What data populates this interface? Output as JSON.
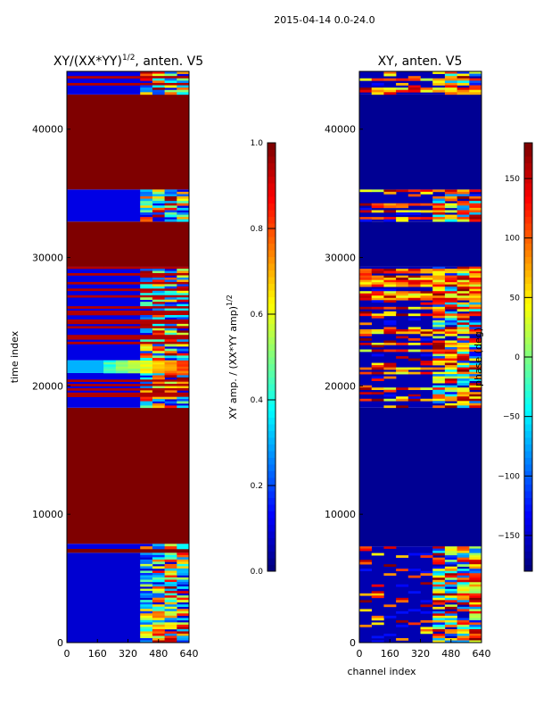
{
  "figure": {
    "suptitle": "2015-04-14 0.0-24.0"
  },
  "colors": {
    "jet": [
      "#00007f",
      "#0000ff",
      "#007fff",
      "#00ffff",
      "#7fff7f",
      "#ffff00",
      "#ff7f00",
      "#ff0000",
      "#7f0000"
    ]
  },
  "chart_data": [
    {
      "type": "heatmap",
      "title_main": "XY/(XX*YY)",
      "title_exp": "1/2",
      "title_tail": ", anten. V5",
      "xlabel": "",
      "ylabel": "time index",
      "xlim": [
        0,
        640
      ],
      "ylim": [
        0,
        44500
      ],
      "xticks": [
        0,
        160,
        320,
        480,
        640
      ],
      "yticks": [
        0,
        10000,
        20000,
        30000,
        40000
      ],
      "colorbar": {
        "label_main": "XY amp. / (XX*YY amp)",
        "label_exp": "1/2",
        "range": [
          0.0,
          1.0
        ],
        "ticks": [
          0.0,
          0.2,
          0.4,
          0.6,
          0.8,
          1.0
        ],
        "tick_labels": [
          "0.0",
          "0.2",
          "0.4",
          "0.6",
          "0.8",
          "1.0"
        ]
      },
      "bands": [
        {
          "t0": 0,
          "t1": 7000,
          "pattern": "noise",
          "base": 0.08
        },
        {
          "t0": 7000,
          "t1": 7300,
          "pattern": "solid",
          "value": 1.0
        },
        {
          "t0": 7300,
          "t1": 7700,
          "pattern": "noise",
          "base": 0.1
        },
        {
          "t0": 7700,
          "t1": 18300,
          "pattern": "solid",
          "value": 1.0
        },
        {
          "t0": 18300,
          "t1": 21000,
          "pattern": "stripes",
          "base": 0.1
        },
        {
          "t0": 21000,
          "t1": 22000,
          "pattern": "gradient",
          "base": 0.3
        },
        {
          "t0": 22000,
          "t1": 23800,
          "pattern": "stripes",
          "base": 0.1
        },
        {
          "t0": 23800,
          "t1": 29300,
          "pattern": "stripes",
          "base": 0.1
        },
        {
          "t0": 29300,
          "t1": 32800,
          "pattern": "solid",
          "value": 1.0
        },
        {
          "t0": 32800,
          "t1": 35300,
          "pattern": "noise",
          "base": 0.1
        },
        {
          "t0": 35300,
          "t1": 42700,
          "pattern": "solid",
          "value": 1.0
        },
        {
          "t0": 42700,
          "t1": 44500,
          "pattern": "stripes",
          "base": 0.1
        }
      ]
    },
    {
      "type": "heatmap",
      "title_main": "XY, anten. V5",
      "title_exp": "",
      "title_tail": "",
      "xlabel": "channel index",
      "ylabel": "",
      "xlim": [
        0,
        640
      ],
      "ylim": [
        0,
        44500
      ],
      "xticks": [
        0,
        160,
        320,
        480,
        640
      ],
      "yticks": [
        0,
        10000,
        20000,
        30000,
        40000
      ],
      "colorbar": {
        "label_main": "phase (deg)",
        "label_exp": "",
        "range": [
          -180,
          180
        ],
        "ticks": [
          -150,
          -100,
          -50,
          0,
          50,
          100,
          150
        ],
        "tick_labels": [
          "−150",
          "−100",
          "−50",
          "0",
          "50",
          "100",
          "150"
        ]
      },
      "bands": [
        {
          "t0": 0,
          "t1": 7500,
          "pattern": "phase-noise",
          "base": 0.05
        },
        {
          "t0": 7500,
          "t1": 18300,
          "pattern": "solid",
          "value": 0.02
        },
        {
          "t0": 18300,
          "t1": 29300,
          "pattern": "phase-stripes",
          "base": 0.05
        },
        {
          "t0": 29300,
          "t1": 32800,
          "pattern": "solid",
          "value": 0.02
        },
        {
          "t0": 32800,
          "t1": 35300,
          "pattern": "phase-stripes",
          "base": 0.05
        },
        {
          "t0": 35300,
          "t1": 42700,
          "pattern": "solid",
          "value": 0.02
        },
        {
          "t0": 42700,
          "t1": 44500,
          "pattern": "phase-stripes",
          "base": 0.05
        }
      ]
    }
  ]
}
